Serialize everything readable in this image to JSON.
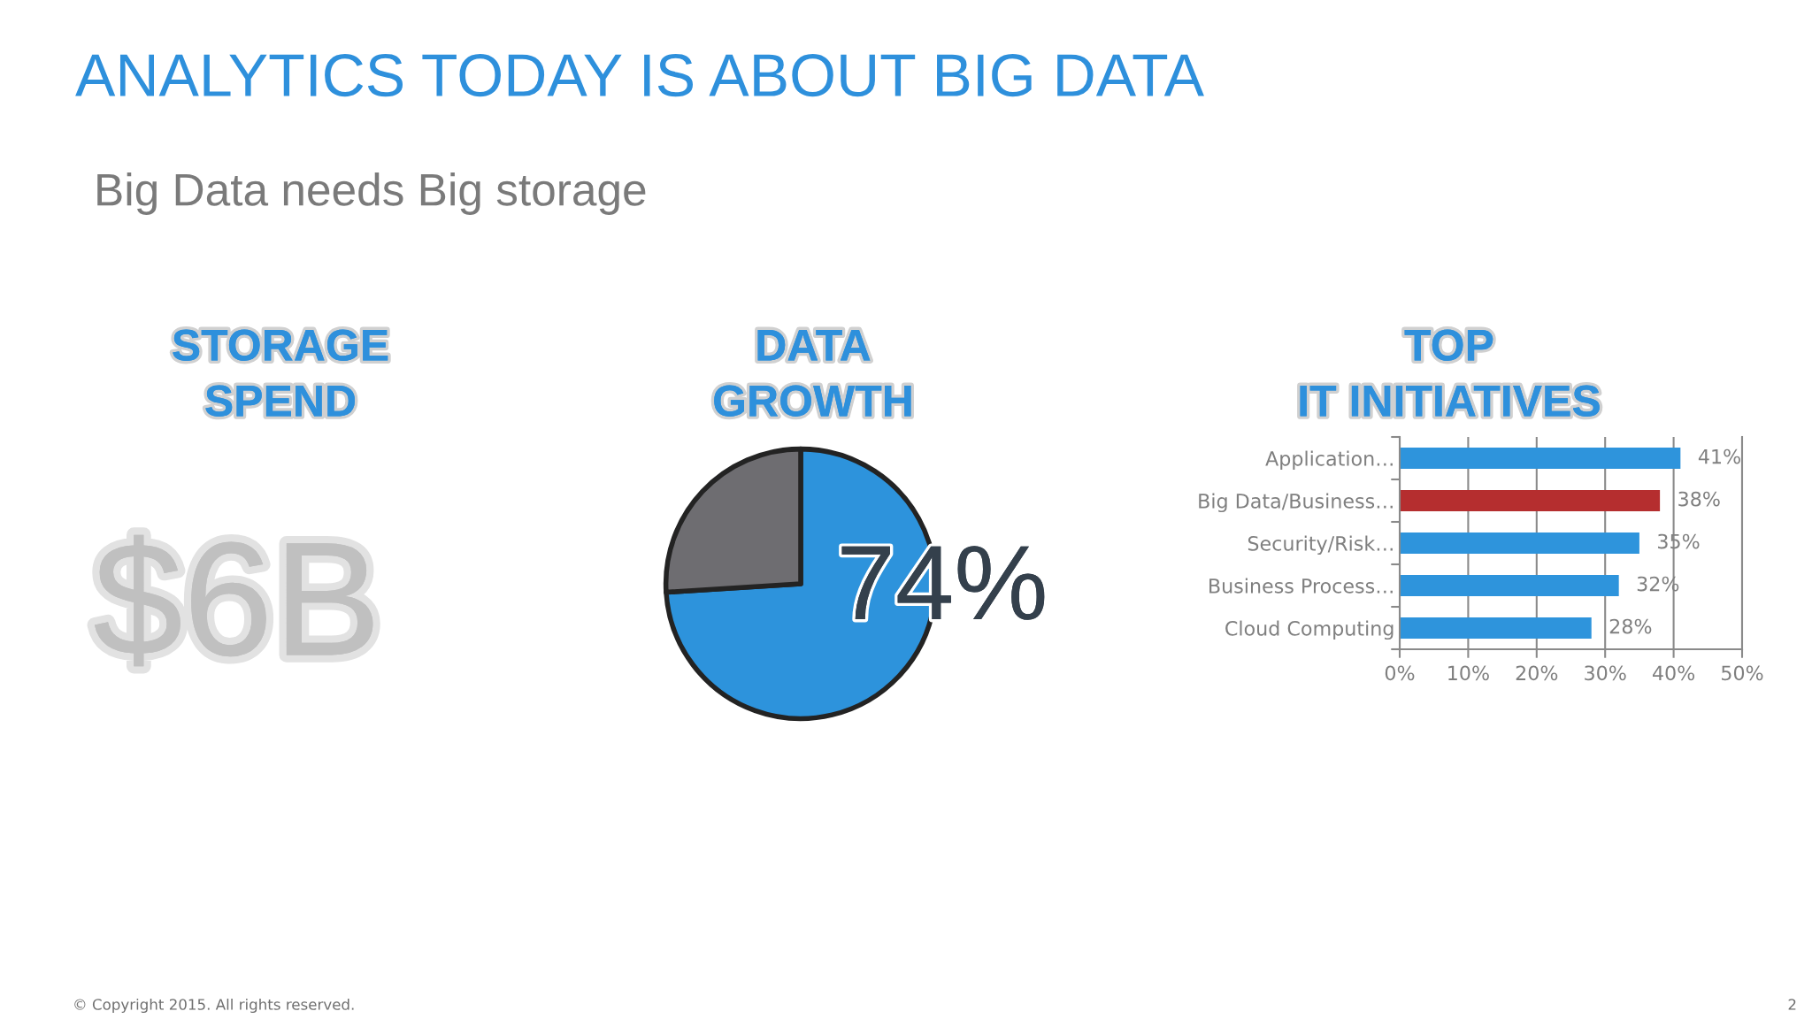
{
  "chart_data": [
    {
      "type": "other",
      "title": "ANALYTICS TODAY IS ABOUT BIG DATA",
      "subtitle": "Big Data needs Big storage",
      "annotations": [
        "© Copyright 2015. All rights reserved.",
        "2"
      ]
    },
    {
      "type": "other",
      "title": "STORAGE\nSPEND",
      "annotations": [
        "$6B"
      ]
    },
    {
      "type": "pie",
      "title": "DATA\nGROWTH",
      "categories": [
        null,
        null
      ],
      "values": [
        74,
        26
      ],
      "colors": [
        "#2d93dc",
        "#6e6d71"
      ],
      "value_labels": [
        "74%",
        null
      ]
    },
    {
      "type": "bar",
      "orientation": "horizontal",
      "title": "TOP\nIT INITIATIVES",
      "categories": [
        "Application…",
        "Big Data/Business…",
        "Security/Risk…",
        "Business Process…",
        "Cloud Computing"
      ],
      "values": [
        41,
        38,
        35,
        32,
        28
      ],
      "colors": [
        "#2e94dc",
        "#b52e2f",
        "#2e94dc",
        "#2e94dc",
        "#2e94dc"
      ],
      "xlim": [
        0,
        50
      ],
      "xticks": [
        {
          "value": 0,
          "label": "0%"
        },
        {
          "value": 10,
          "label": "10%"
        },
        {
          "value": 20,
          "label": "20%"
        },
        {
          "value": 30,
          "label": "30%"
        },
        {
          "value": 40,
          "label": "40%"
        },
        {
          "value": 50,
          "label": "50%"
        }
      ],
      "grid": "x",
      "value_labels": [
        "41%",
        "38%",
        "35%",
        "32%",
        "28%"
      ]
    }
  ]
}
